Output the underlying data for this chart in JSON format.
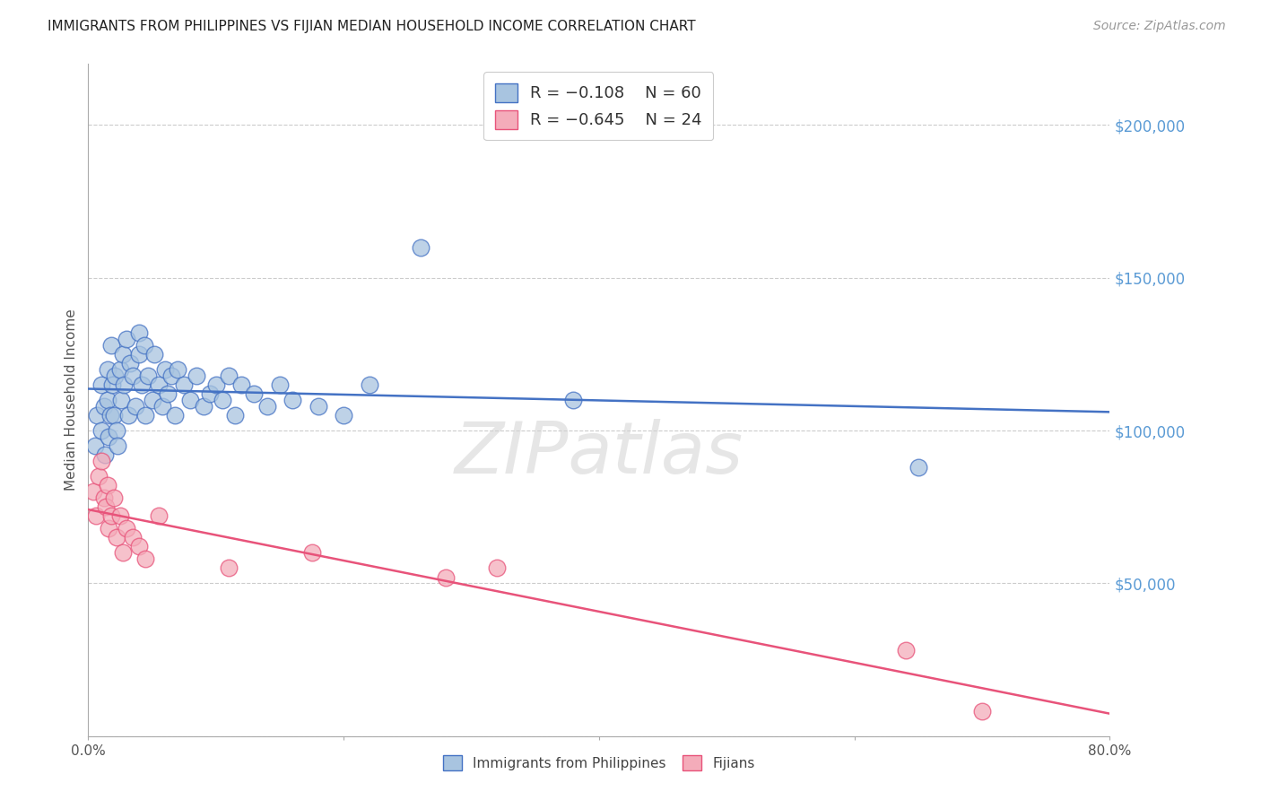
{
  "title": "IMMIGRANTS FROM PHILIPPINES VS FIJIAN MEDIAN HOUSEHOLD INCOME CORRELATION CHART",
  "source": "Source: ZipAtlas.com",
  "ylabel": "Median Household Income",
  "xlim": [
    0.0,
    0.8
  ],
  "ylim": [
    0,
    220000
  ],
  "ytick_values": [
    0,
    50000,
    100000,
    150000,
    200000
  ],
  "xtick_values": [
    0.0,
    0.2,
    0.4,
    0.6,
    0.8
  ],
  "xtick_labels": [
    "0.0%",
    "",
    "",
    "",
    "80.0%"
  ],
  "blue_color": "#A8C4E0",
  "blue_edge_color": "#4472C4",
  "pink_color": "#F4ACBA",
  "pink_edge_color": "#E8537A",
  "blue_line_color": "#4472C4",
  "pink_line_color": "#E8537A",
  "legend_r1": "R = −0.108",
  "legend_n1": "N = 60",
  "legend_r2": "R = −0.645",
  "legend_n2": "N = 24",
  "watermark": "ZIPatlas",
  "right_ytick_color": "#5B9BD5",
  "right_ytick_labels": [
    "$200,000",
    "$150,000",
    "$100,000",
    "$50,000"
  ],
  "right_ytick_values": [
    200000,
    150000,
    100000,
    50000
  ],
  "blue_scatter_x": [
    0.005,
    0.007,
    0.01,
    0.01,
    0.012,
    0.013,
    0.015,
    0.015,
    0.016,
    0.017,
    0.018,
    0.019,
    0.02,
    0.021,
    0.022,
    0.023,
    0.025,
    0.026,
    0.027,
    0.028,
    0.03,
    0.031,
    0.033,
    0.035,
    0.037,
    0.04,
    0.04,
    0.042,
    0.044,
    0.045,
    0.047,
    0.05,
    0.052,
    0.055,
    0.058,
    0.06,
    0.062,
    0.065,
    0.068,
    0.07,
    0.075,
    0.08,
    0.085,
    0.09,
    0.095,
    0.1,
    0.105,
    0.11,
    0.115,
    0.12,
    0.13,
    0.14,
    0.15,
    0.16,
    0.18,
    0.2,
    0.22,
    0.26,
    0.38,
    0.65
  ],
  "blue_scatter_y": [
    95000,
    105000,
    100000,
    115000,
    108000,
    92000,
    110000,
    120000,
    98000,
    105000,
    128000,
    115000,
    105000,
    118000,
    100000,
    95000,
    120000,
    110000,
    125000,
    115000,
    130000,
    105000,
    122000,
    118000,
    108000,
    125000,
    132000,
    115000,
    128000,
    105000,
    118000,
    110000,
    125000,
    115000,
    108000,
    120000,
    112000,
    118000,
    105000,
    120000,
    115000,
    110000,
    118000,
    108000,
    112000,
    115000,
    110000,
    118000,
    105000,
    115000,
    112000,
    108000,
    115000,
    110000,
    108000,
    105000,
    115000,
    160000,
    110000,
    88000
  ],
  "pink_scatter_x": [
    0.004,
    0.006,
    0.008,
    0.01,
    0.012,
    0.014,
    0.015,
    0.016,
    0.018,
    0.02,
    0.022,
    0.025,
    0.027,
    0.03,
    0.035,
    0.04,
    0.045,
    0.055,
    0.11,
    0.175,
    0.28,
    0.32,
    0.64,
    0.7
  ],
  "pink_scatter_y": [
    80000,
    72000,
    85000,
    90000,
    78000,
    75000,
    82000,
    68000,
    72000,
    78000,
    65000,
    72000,
    60000,
    68000,
    65000,
    62000,
    58000,
    72000,
    55000,
    60000,
    52000,
    55000,
    28000,
    8000
  ]
}
